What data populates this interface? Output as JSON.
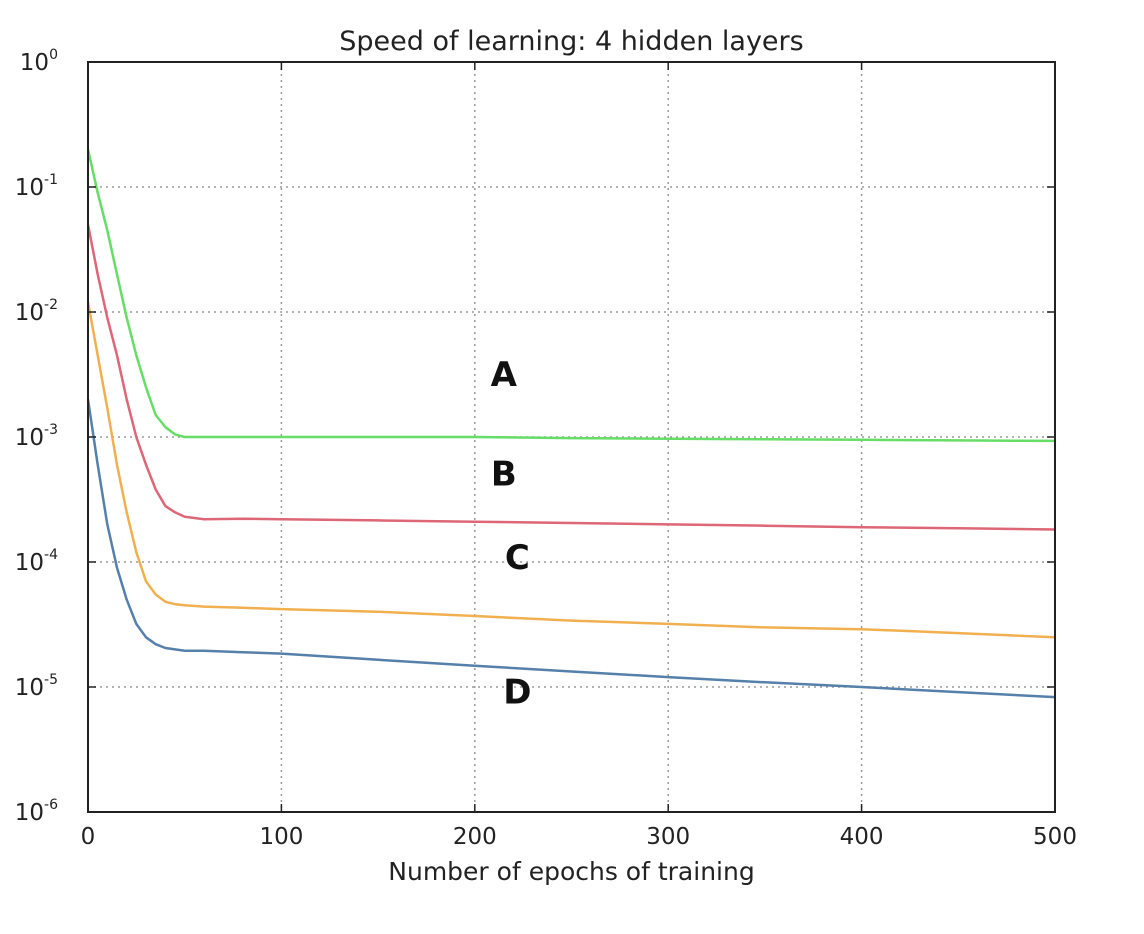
{
  "chart_data": {
    "type": "line",
    "title": "Speed of learning: 4 hidden layers",
    "xlabel": "Number of epochs of training",
    "ylabel": "",
    "xlim": [
      0,
      500
    ],
    "ylim": [
      1e-06,
      1
    ],
    "yscale": "log",
    "grid": true,
    "x_ticks": [
      "0",
      "100",
      "200",
      "300",
      "400",
      "500"
    ],
    "y_ticks": [
      {
        "base": "10",
        "exp": "0"
      },
      {
        "base": "10",
        "exp": "-1"
      },
      {
        "base": "10",
        "exp": "-2"
      },
      {
        "base": "10",
        "exp": "-3"
      },
      {
        "base": "10",
        "exp": "-4"
      },
      {
        "base": "10",
        "exp": "-5"
      },
      {
        "base": "10",
        "exp": "-6"
      }
    ],
    "x": [
      0,
      5,
      10,
      15,
      20,
      25,
      30,
      35,
      40,
      45,
      50,
      60,
      80,
      100,
      150,
      200,
      250,
      300,
      350,
      400,
      450,
      500
    ],
    "series": [
      {
        "color": "#66dd66",
        "values": [
          0.2,
          0.09,
          0.045,
          0.02,
          0.009,
          0.0045,
          0.0025,
          0.0015,
          0.0012,
          0.00105,
          0.001,
          0.001,
          0.001,
          0.001,
          0.001,
          0.001,
          0.00098,
          0.00097,
          0.00096,
          0.00095,
          0.00094,
          0.00093
        ]
      },
      {
        "color": "#dd6677",
        "values": [
          0.05,
          0.02,
          0.009,
          0.0045,
          0.002,
          0.001,
          0.0006,
          0.00038,
          0.00028,
          0.00025,
          0.00023,
          0.00022,
          0.000222,
          0.00022,
          0.000215,
          0.00021,
          0.000205,
          0.0002,
          0.000195,
          0.00019,
          0.000186,
          0.000182
        ]
      },
      {
        "color": "#f0b050",
        "values": [
          0.012,
          0.0045,
          0.0017,
          0.0006,
          0.00025,
          0.00012,
          7e-05,
          5.5e-05,
          4.8e-05,
          4.6e-05,
          4.5e-05,
          4.4e-05,
          4.3e-05,
          4.2e-05,
          4e-05,
          3.7e-05,
          3.4e-05,
          3.2e-05,
          3e-05,
          2.9e-05,
          2.7e-05,
          2.5e-05
        ]
      },
      {
        "color": "#5580aa",
        "values": [
          0.002,
          0.0006,
          0.0002,
          9e-05,
          5e-05,
          3.2e-05,
          2.5e-05,
          2.2e-05,
          2.05e-05,
          2e-05,
          1.95e-05,
          1.95e-05,
          1.9e-05,
          1.85e-05,
          1.65e-05,
          1.48e-05,
          1.33e-05,
          1.2e-05,
          1.09e-05,
          1e-05,
          9.1e-06,
          8.3e-06
        ]
      }
    ],
    "annotations": [
      {
        "text": "A",
        "x": 215,
        "y": 0.0032
      },
      {
        "text": "B",
        "x": 215,
        "y": 0.00051
      },
      {
        "text": "C",
        "x": 222,
        "y": 0.00011
      },
      {
        "text": "D",
        "x": 222,
        "y": 9.2e-06
      }
    ]
  }
}
